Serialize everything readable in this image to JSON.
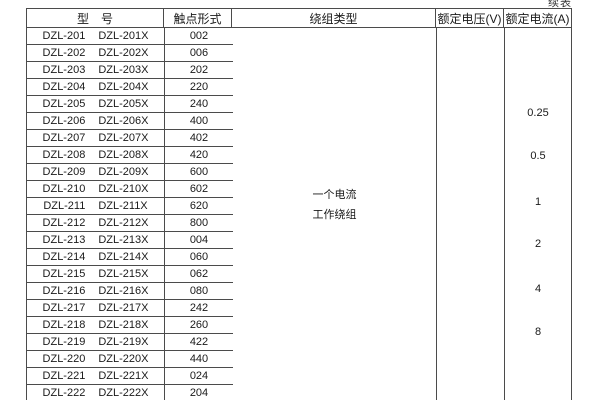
{
  "page": {
    "continuation_label": "续表"
  },
  "table": {
    "headers": {
      "model": "型　号",
      "contact_form": "触点形式",
      "winding_type": "绕组类型",
      "rated_voltage": "额定电压(V)",
      "rated_current": "额定电流(A)"
    },
    "winding_type_lines": [
      "一个电流",
      "工作绕组"
    ],
    "rated_current_values": [
      "0.25",
      "0.5",
      "1",
      "2",
      "4",
      "8"
    ],
    "rows": [
      {
        "model": "DZL-201",
        "model_x": "DZL-201X",
        "contact_form": "002"
      },
      {
        "model": "DZL-202",
        "model_x": "DZL-202X",
        "contact_form": "006"
      },
      {
        "model": "DZL-203",
        "model_x": "DZL-203X",
        "contact_form": "202"
      },
      {
        "model": "DZL-204",
        "model_x": "DZL-204X",
        "contact_form": "220"
      },
      {
        "model": "DZL-205",
        "model_x": "DZL-205X",
        "contact_form": "240"
      },
      {
        "model": "DZL-206",
        "model_x": "DZL-206X",
        "contact_form": "400"
      },
      {
        "model": "DZL-207",
        "model_x": "DZL-207X",
        "contact_form": "402"
      },
      {
        "model": "DZL-208",
        "model_x": "DZL-208X",
        "contact_form": "420"
      },
      {
        "model": "DZL-209",
        "model_x": "DZL-209X",
        "contact_form": "600"
      },
      {
        "model": "DZL-210",
        "model_x": "DZL-210X",
        "contact_form": "602"
      },
      {
        "model": "DZL-211",
        "model_x": "DZL-211X",
        "contact_form": "620"
      },
      {
        "model": "DZL-212",
        "model_x": "DZL-212X",
        "contact_form": "800"
      },
      {
        "model": "DZL-213",
        "model_x": "DZL-213X",
        "contact_form": "004"
      },
      {
        "model": "DZL-214",
        "model_x": "DZL-214X",
        "contact_form": "060"
      },
      {
        "model": "DZL-215",
        "model_x": "DZL-215X",
        "contact_form": "062"
      },
      {
        "model": "DZL-216",
        "model_x": "DZL-216X",
        "contact_form": "080"
      },
      {
        "model": "DZL-217",
        "model_x": "DZL-217X",
        "contact_form": "242"
      },
      {
        "model": "DZL-218",
        "model_x": "DZL-218X",
        "contact_form": "260"
      },
      {
        "model": "DZL-219",
        "model_x": "DZL-219X",
        "contact_form": "422"
      },
      {
        "model": "DZL-220",
        "model_x": "DZL-220X",
        "contact_form": "440"
      },
      {
        "model": "DZL-221",
        "model_x": "DZL-221X",
        "contact_form": "024"
      },
      {
        "model": "DZL-222",
        "model_x": "DZL-222X",
        "contact_form": "204"
      }
    ]
  }
}
